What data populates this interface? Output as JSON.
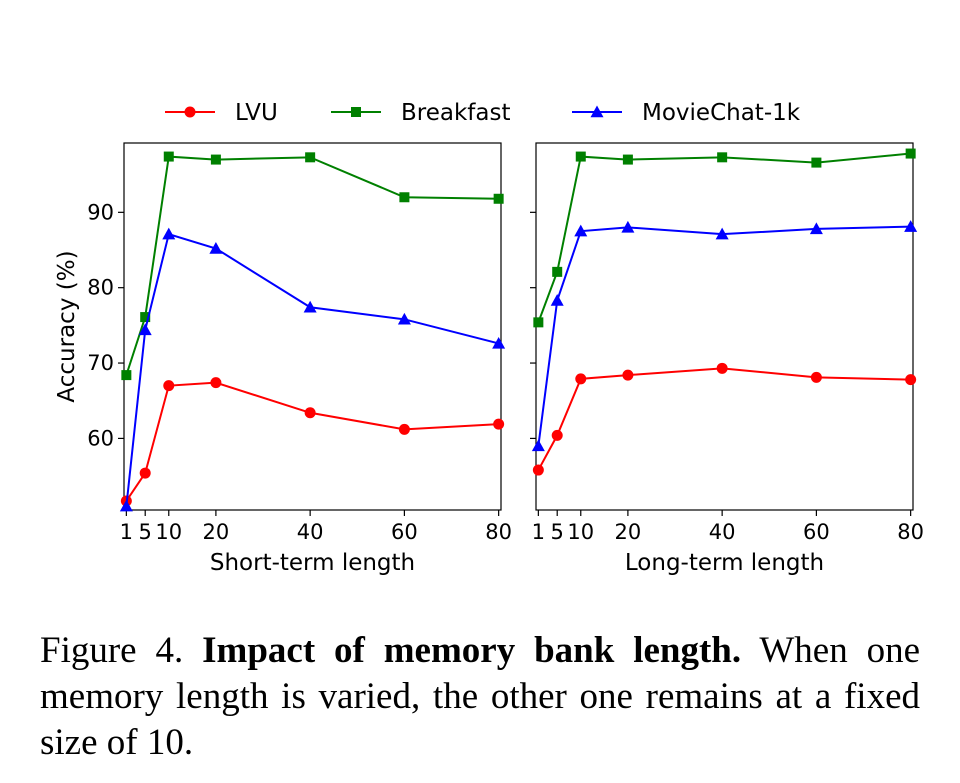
{
  "legend": [
    {
      "name": "LVU",
      "color": "#ff0000",
      "marker": "circle"
    },
    {
      "name": "Breakfast",
      "color": "#008000",
      "marker": "square"
    },
    {
      "name": "MovieChat-1k",
      "color": "#0000ff",
      "marker": "triangle"
    }
  ],
  "chart_data": [
    {
      "type": "line",
      "xlabel": "Short-term length",
      "ylabel": "Accuracy (%)",
      "x": [
        1,
        5,
        10,
        20,
        40,
        60,
        80
      ],
      "xticks": [
        1,
        5,
        10,
        20,
        40,
        60,
        80
      ],
      "yticks": [
        60,
        70,
        80,
        90
      ],
      "xlim": [
        0.5,
        80.5
      ],
      "ylim": [
        50.5,
        99.2
      ],
      "grid": false,
      "legend_position": "top-center",
      "series": [
        {
          "name": "LVU",
          "color": "#ff0000",
          "marker": "circle",
          "values": [
            51.7,
            55.4,
            67.0,
            67.4,
            63.4,
            61.2,
            61.9
          ]
        },
        {
          "name": "Breakfast",
          "color": "#008000",
          "marker": "square",
          "values": [
            68.4,
            76.1,
            97.4,
            97.0,
            97.3,
            92.0,
            91.8
          ]
        },
        {
          "name": "MovieChat-1k",
          "color": "#0000ff",
          "marker": "triangle",
          "values": [
            51.0,
            74.4,
            87.1,
            85.2,
            77.4,
            75.8,
            72.6
          ]
        }
      ]
    },
    {
      "type": "line",
      "xlabel": "Long-term length",
      "ylabel": "",
      "x": [
        1,
        5,
        10,
        20,
        40,
        60,
        80
      ],
      "xticks": [
        1,
        5,
        10,
        20,
        40,
        60,
        80
      ],
      "yticks": [
        60,
        70,
        80,
        90
      ],
      "xlim": [
        0.5,
        80.5
      ],
      "ylim": [
        50.5,
        99.2
      ],
      "grid": false,
      "series": [
        {
          "name": "LVU",
          "color": "#ff0000",
          "marker": "circle",
          "values": [
            55.8,
            60.4,
            67.9,
            68.4,
            69.3,
            68.1,
            67.8
          ]
        },
        {
          "name": "Breakfast",
          "color": "#008000",
          "marker": "square",
          "values": [
            75.4,
            82.1,
            97.4,
            97.0,
            97.3,
            96.6,
            97.8
          ]
        },
        {
          "name": "MovieChat-1k",
          "color": "#0000ff",
          "marker": "triangle",
          "values": [
            59.0,
            78.3,
            87.5,
            88.0,
            87.1,
            87.8,
            88.1
          ]
        }
      ]
    }
  ],
  "caption": {
    "label": "Figure 4.",
    "bold": "Impact of memory bank length.",
    "text": "When one memory length is varied, the other one remains at a fixed size of 10."
  }
}
